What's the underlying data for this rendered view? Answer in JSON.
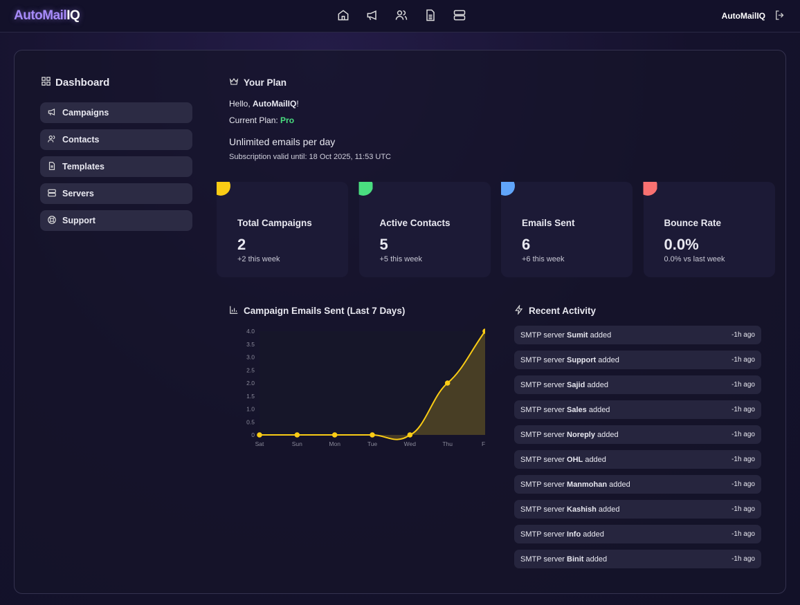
{
  "header": {
    "logo_main": "AutoMail",
    "logo_accent": "IQ",
    "user": "AutoMailIQ",
    "nav_icons": [
      "home-icon",
      "megaphone-icon",
      "users-icon",
      "file-text-icon",
      "server-icon"
    ]
  },
  "sidebar": {
    "title": "Dashboard",
    "items": [
      {
        "label": "Campaigns",
        "icon": "megaphone-icon"
      },
      {
        "label": "Contacts",
        "icon": "users-icon"
      },
      {
        "label": "Templates",
        "icon": "file-text-icon"
      },
      {
        "label": "Servers",
        "icon": "server-icon"
      },
      {
        "label": "Support",
        "icon": "life-buoy-icon"
      }
    ]
  },
  "plan": {
    "title": "Your Plan",
    "hello_prefix": "Hello, ",
    "hello_name": "AutoMailIQ",
    "hello_suffix": "!",
    "plan_label": "Current Plan: ",
    "plan_value": "Pro",
    "limit": "Unlimited emails per day",
    "valid": "Subscription valid until: 18 Oct 2025, 11:53 UTC",
    "colors": {
      "pro": "#4ade80"
    }
  },
  "stats": [
    {
      "title": "Total Campaigns",
      "value": "2",
      "sub": "+2 this week",
      "color": "#facc15"
    },
    {
      "title": "Active Contacts",
      "value": "5",
      "sub": "+5 this week",
      "color": "#4ade80"
    },
    {
      "title": "Emails Sent",
      "value": "6",
      "sub": "+6 this week",
      "color": "#60a5fa"
    },
    {
      "title": "Bounce Rate",
      "value": "0.0%",
      "sub": "0.0% vs last week",
      "color": "#f87171"
    }
  ],
  "chart_title": "Campaign Emails Sent (Last 7 Days)",
  "chart_data": {
    "type": "line",
    "categories": [
      "Sat",
      "Sun",
      "Mon",
      "Tue",
      "Wed",
      "Thu",
      "Fri"
    ],
    "values": [
      0,
      0,
      0,
      0,
      0,
      2,
      4
    ],
    "ylim": [
      0,
      4
    ],
    "yticks": [
      "0",
      "0.5",
      "1.0",
      "1.5",
      "2.0",
      "2.5",
      "3.0",
      "3.5",
      "4.0"
    ],
    "fill": true,
    "color": "#facc15",
    "grid": false
  },
  "activity": {
    "title": "Recent Activity",
    "items": [
      {
        "prefix": "SMTP server ",
        "name": "Sumit",
        "suffix": " added",
        "time": "-1h ago"
      },
      {
        "prefix": "SMTP server ",
        "name": "Support",
        "suffix": " added",
        "time": "-1h ago"
      },
      {
        "prefix": "SMTP server ",
        "name": "Sajid",
        "suffix": " added",
        "time": "-1h ago"
      },
      {
        "prefix": "SMTP server ",
        "name": "Sales",
        "suffix": " added",
        "time": "-1h ago"
      },
      {
        "prefix": "SMTP server ",
        "name": "Noreply",
        "suffix": " added",
        "time": "-1h ago"
      },
      {
        "prefix": "SMTP server ",
        "name": "OHL",
        "suffix": " added",
        "time": "-1h ago"
      },
      {
        "prefix": "SMTP server ",
        "name": "Manmohan",
        "suffix": " added",
        "time": "-1h ago"
      },
      {
        "prefix": "SMTP server ",
        "name": "Kashish",
        "suffix": " added",
        "time": "-1h ago"
      },
      {
        "prefix": "SMTP server ",
        "name": "Info",
        "suffix": " added",
        "time": "-1h ago"
      },
      {
        "prefix": "SMTP server ",
        "name": "Binit",
        "suffix": " added",
        "time": "-1h ago"
      }
    ]
  }
}
